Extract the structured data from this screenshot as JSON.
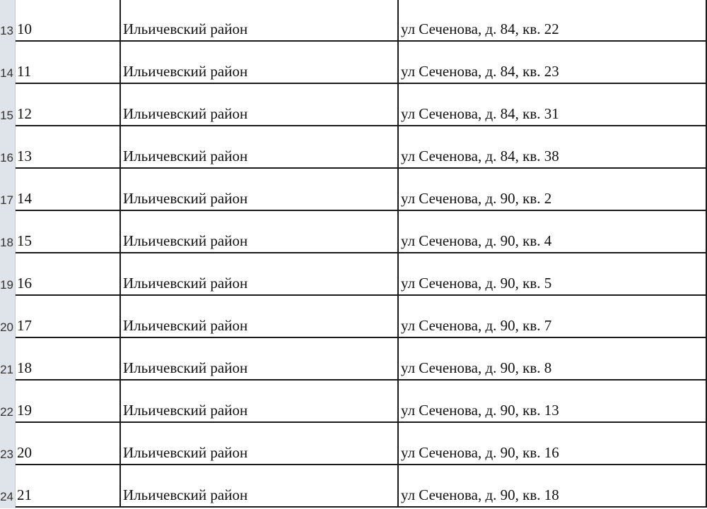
{
  "rows": [
    {
      "row_header": "13",
      "num": "10",
      "district": "Ильичевский район",
      "address": "ул Сеченова, д. 84, кв. 22"
    },
    {
      "row_header": "14",
      "num": "11",
      "district": "Ильичевский район",
      "address": "ул Сеченова, д. 84, кв. 23"
    },
    {
      "row_header": "15",
      "num": "12",
      "district": "Ильичевский район",
      "address": "ул Сеченова, д. 84, кв. 31"
    },
    {
      "row_header": "16",
      "num": "13",
      "district": "Ильичевский район",
      "address": "ул Сеченова, д. 84, кв. 38"
    },
    {
      "row_header": "17",
      "num": "14",
      "district": "Ильичевский район",
      "address": "ул Сеченова, д. 90, кв. 2"
    },
    {
      "row_header": "18",
      "num": "15",
      "district": "Ильичевский район",
      "address": "ул Сеченова, д. 90, кв. 4"
    },
    {
      "row_header": "19",
      "num": "16",
      "district": "Ильичевский район",
      "address": "ул Сеченова, д. 90, кв. 5"
    },
    {
      "row_header": "20",
      "num": "17",
      "district": "Ильичевский район",
      "address": "ул Сеченова, д. 90, кв. 7"
    },
    {
      "row_header": "21",
      "num": "18",
      "district": "Ильичевский район",
      "address": "ул Сеченова, д. 90, кв. 8"
    },
    {
      "row_header": "22",
      "num": "19",
      "district": "Ильичевский район",
      "address": "ул Сеченова, д. 90, кв. 13"
    },
    {
      "row_header": "23",
      "num": "20",
      "district": "Ильичевский район",
      "address": "ул Сеченова, д. 90, кв. 16"
    },
    {
      "row_header": "24",
      "num": "21",
      "district": "Ильичевский район",
      "address": "ул Сеченова, д. 90, кв. 18"
    }
  ]
}
